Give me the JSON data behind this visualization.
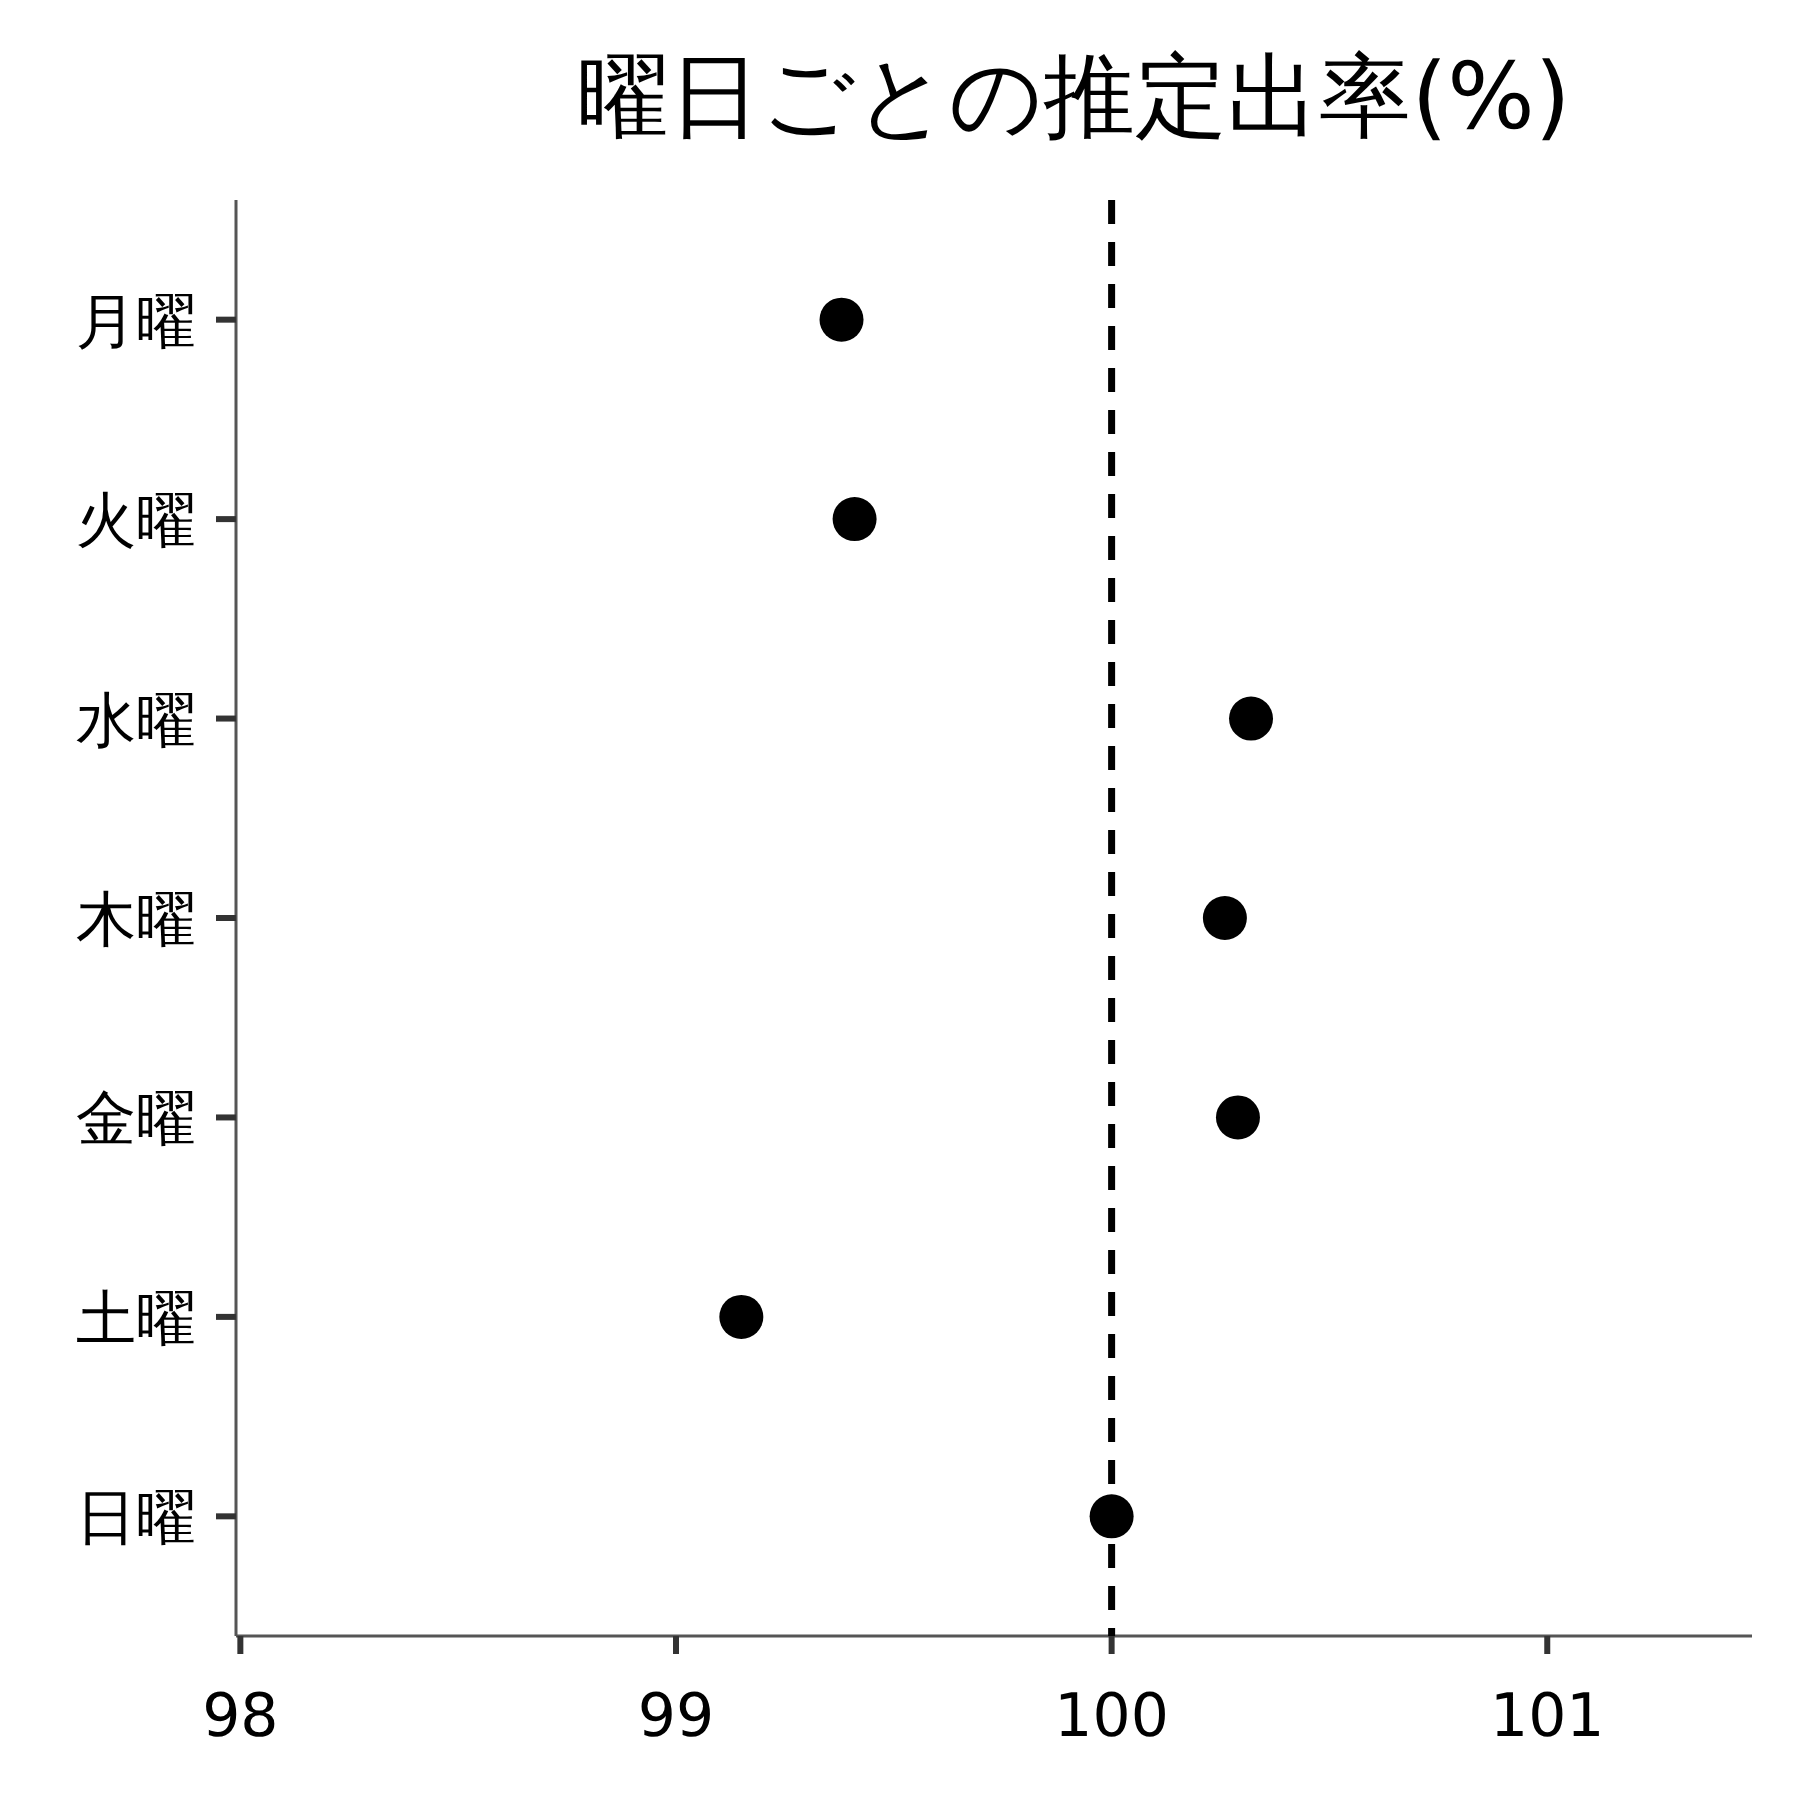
{
  "chart_data": {
    "type": "scatter",
    "title": "曜日ごとの推定出率(%)",
    "orientation": "horizontal",
    "categories": [
      "月曜",
      "火曜",
      "水曜",
      "木曜",
      "金曜",
      "土曜",
      "日曜"
    ],
    "series": [
      {
        "color": "#000000",
        "values": [
          99.38,
          99.41,
          100.32,
          100.26,
          100.29,
          99.15,
          100.0
        ]
      }
    ],
    "xlim": [
      97.99,
      101.47
    ],
    "xticks": [
      98,
      99,
      100,
      101
    ],
    "marker": "circle",
    "grid": false,
    "ref_lines": [
      {
        "axis": "x",
        "value": 100,
        "color": "#000000",
        "line_style": "dashed"
      }
    ]
  }
}
